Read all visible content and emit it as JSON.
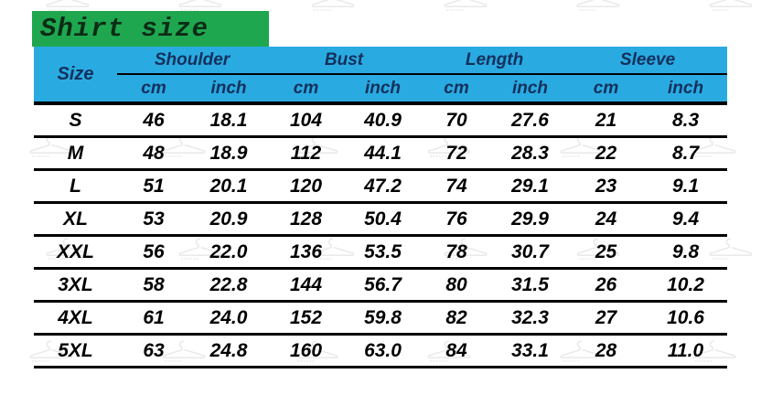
{
  "title": "Shirt size",
  "table": {
    "size_header": "Size",
    "groups": [
      {
        "label": "Shoulder"
      },
      {
        "label": "Bust"
      },
      {
        "label": "Length"
      },
      {
        "label": "Sleeve"
      }
    ],
    "unit_cm": "cm",
    "unit_inch": "inch",
    "rows": [
      {
        "size": "S",
        "values": [
          "46",
          "18.1",
          "104",
          "40.9",
          "70",
          "27.6",
          "21",
          "8.3"
        ]
      },
      {
        "size": "M",
        "values": [
          "48",
          "18.9",
          "112",
          "44.1",
          "72",
          "28.3",
          "22",
          "8.7"
        ]
      },
      {
        "size": "L",
        "values": [
          "51",
          "20.1",
          "120",
          "47.2",
          "74",
          "29.1",
          "23",
          "9.1"
        ]
      },
      {
        "size": "XL",
        "values": [
          "53",
          "20.9",
          "128",
          "50.4",
          "76",
          "29.9",
          "24",
          "9.4"
        ]
      },
      {
        "size": "XXL",
        "values": [
          "56",
          "22.0",
          "136",
          "53.5",
          "78",
          "30.7",
          "25",
          "9.8"
        ]
      },
      {
        "size": "3XL",
        "values": [
          "58",
          "22.8",
          "144",
          "56.7",
          "80",
          "31.5",
          "26",
          "10.2"
        ]
      },
      {
        "size": "4XL",
        "values": [
          "61",
          "24.0",
          "152",
          "59.8",
          "82",
          "32.3",
          "27",
          "10.6"
        ]
      },
      {
        "size": "5XL",
        "values": [
          "63",
          "24.8",
          "160",
          "63.0",
          "84",
          "33.1",
          "28",
          "11.0"
        ]
      }
    ]
  },
  "colors": {
    "banner-green": "#1fa750",
    "header-cyan": "#29abe2",
    "header-text": "#14305c",
    "title-text": "#0d2c15",
    "body-text": "#000000",
    "watermark-gray": "#d9d9d9"
  },
  "chart_data": {
    "type": "table",
    "title": "Shirt size",
    "columns": [
      "Size",
      "Shoulder cm",
      "Shoulder inch",
      "Bust cm",
      "Bust inch",
      "Length cm",
      "Length inch",
      "Sleeve cm",
      "Sleeve inch"
    ],
    "rows": [
      [
        "S",
        46,
        18.1,
        104,
        40.9,
        70,
        27.6,
        21,
        8.3
      ],
      [
        "M",
        48,
        18.9,
        112,
        44.1,
        72,
        28.3,
        22,
        8.7
      ],
      [
        "L",
        51,
        20.1,
        120,
        47.2,
        74,
        29.1,
        23,
        9.1
      ],
      [
        "XL",
        53,
        20.9,
        128,
        50.4,
        76,
        29.9,
        24,
        9.4
      ],
      [
        "XXL",
        56,
        22.0,
        136,
        53.5,
        78,
        30.7,
        25,
        9.8
      ],
      [
        "3XL",
        58,
        22.8,
        144,
        56.7,
        80,
        31.5,
        26,
        10.2
      ],
      [
        "4XL",
        61,
        24.0,
        152,
        59.8,
        82,
        32.3,
        27,
        10.6
      ],
      [
        "5XL",
        63,
        24.8,
        160,
        63.0,
        84,
        33.1,
        28,
        11.0
      ]
    ]
  }
}
